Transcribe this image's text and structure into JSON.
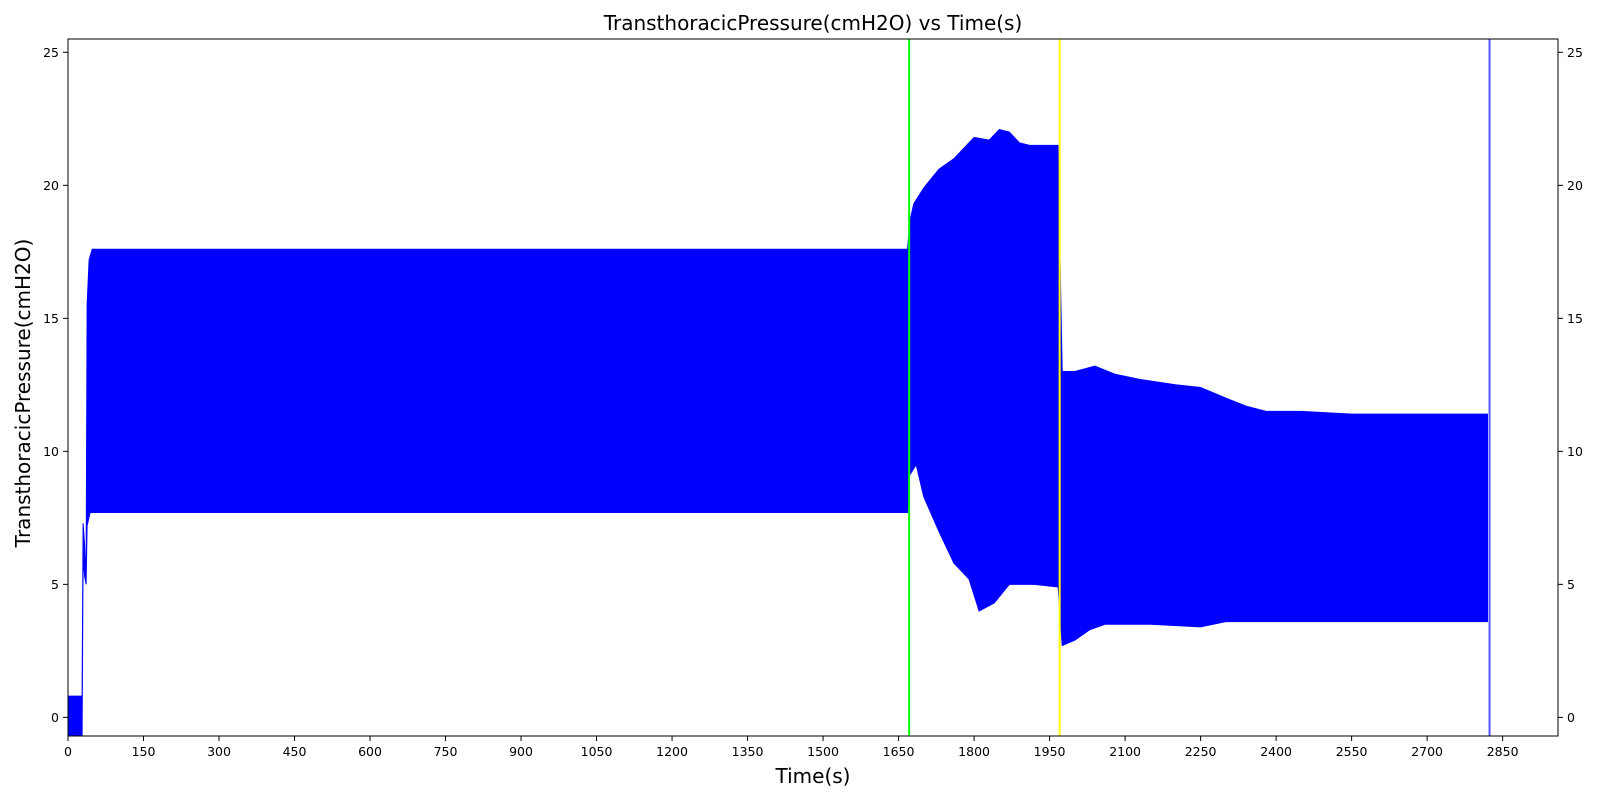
{
  "chart_data": {
    "type": "line",
    "title": "TransthoracicPressure(cmH2O) vs Time(s)",
    "xlabel": "Time(s)",
    "ylabel": "TransthoracicPressure(cmH2O)",
    "xlim": [
      0,
      2960
    ],
    "ylim": [
      -0.7,
      25.5
    ],
    "x_ticks": [
      0,
      150,
      300,
      450,
      600,
      750,
      900,
      1050,
      1200,
      1350,
      1500,
      1650,
      1800,
      1950,
      2100,
      2250,
      2400,
      2550,
      2700,
      2850
    ],
    "x_tick_labels": [
      "0",
      "150",
      "300",
      "450",
      "600",
      "750",
      "900",
      "1050",
      "1200",
      "1350",
      "1500",
      "1650",
      "1800",
      "1950",
      "2100",
      "2250",
      "2400",
      "2550",
      "2700",
      "2850"
    ],
    "y_ticks": [
      0,
      5,
      10,
      15,
      20,
      25
    ],
    "y_tick_labels": [
      "0",
      "5",
      "10",
      "15",
      "20",
      "25"
    ],
    "right_y_axis_ticks": true,
    "grid": false,
    "legend": "none",
    "series": [
      {
        "color": "#0000ff",
        "envelope_note": "oscillating signal drawn as upper/lower envelope",
        "upper": [
          [
            0,
            0.8
          ],
          [
            28,
            0.8
          ],
          [
            30,
            7.3
          ],
          [
            33,
            6.5
          ],
          [
            36,
            5.1
          ],
          [
            38,
            15.5
          ],
          [
            42,
            17.2
          ],
          [
            48,
            17.6
          ],
          [
            300,
            17.6
          ],
          [
            900,
            17.6
          ],
          [
            1500,
            17.6
          ],
          [
            1668,
            17.6
          ],
          [
            1672,
            18.6
          ],
          [
            1680,
            19.3
          ],
          [
            1700,
            19.9
          ],
          [
            1730,
            20.6
          ],
          [
            1760,
            21.0
          ],
          [
            1780,
            21.4
          ],
          [
            1800,
            21.8
          ],
          [
            1830,
            21.7
          ],
          [
            1850,
            22.1
          ],
          [
            1870,
            22.0
          ],
          [
            1890,
            21.6
          ],
          [
            1910,
            21.5
          ],
          [
            1940,
            21.5
          ],
          [
            1967,
            21.5
          ],
          [
            1972,
            15.9
          ],
          [
            1975,
            13.0
          ],
          [
            2000,
            13.0
          ],
          [
            2040,
            13.2
          ],
          [
            2080,
            12.9
          ],
          [
            2130,
            12.7
          ],
          [
            2200,
            12.5
          ],
          [
            2250,
            12.4
          ],
          [
            2300,
            12.0
          ],
          [
            2340,
            11.7
          ],
          [
            2380,
            11.5
          ],
          [
            2450,
            11.5
          ],
          [
            2550,
            11.4
          ],
          [
            2700,
            11.4
          ],
          [
            2820,
            11.4
          ]
        ],
        "lower": [
          [
            0,
            -0.7
          ],
          [
            28,
            -0.7
          ],
          [
            30,
            6.0
          ],
          [
            33,
            5.3
          ],
          [
            36,
            5.0
          ],
          [
            38,
            7.2
          ],
          [
            44,
            7.7
          ],
          [
            48,
            7.7
          ],
          [
            300,
            7.7
          ],
          [
            900,
            7.7
          ],
          [
            1500,
            7.7
          ],
          [
            1668,
            7.7
          ],
          [
            1672,
            9.1
          ],
          [
            1685,
            9.5
          ],
          [
            1700,
            8.3
          ],
          [
            1730,
            7.0
          ],
          [
            1760,
            5.8
          ],
          [
            1790,
            5.2
          ],
          [
            1810,
            4.0
          ],
          [
            1840,
            4.3
          ],
          [
            1870,
            5.0
          ],
          [
            1920,
            5.0
          ],
          [
            1967,
            4.9
          ],
          [
            1975,
            2.7
          ],
          [
            2000,
            2.9
          ],
          [
            2030,
            3.3
          ],
          [
            2060,
            3.5
          ],
          [
            2150,
            3.5
          ],
          [
            2250,
            3.4
          ],
          [
            2300,
            3.6
          ],
          [
            2400,
            3.6
          ],
          [
            2820,
            3.6
          ]
        ]
      }
    ],
    "vertical_lines": [
      {
        "x": 1671,
        "color": "#00ff00"
      },
      {
        "x": 1970,
        "color": "#ffff00"
      },
      {
        "x": 2824,
        "color": "#5555ff"
      }
    ]
  }
}
